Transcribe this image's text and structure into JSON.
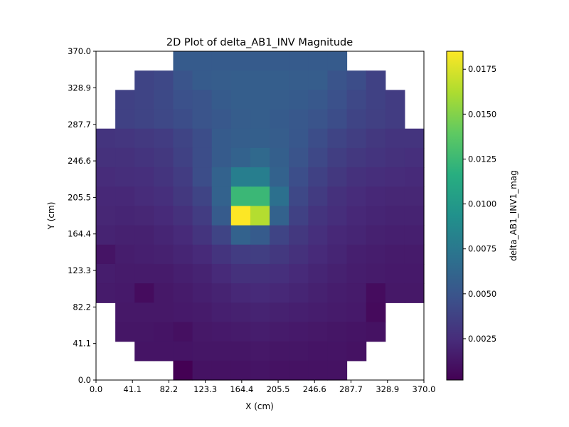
{
  "chart_data": {
    "type": "heatmap",
    "title": "2D Plot of delta_AB1_INV Magnitude",
    "xlabel": "X (cm)",
    "ylabel": "Y (cm)",
    "xlim": [
      0.0,
      370.0
    ],
    "ylim": [
      0.0,
      370.0
    ],
    "x_ticks": [
      "0.0",
      "41.1",
      "82.2",
      "123.3",
      "164.4",
      "205.5",
      "246.6",
      "287.7",
      "328.9",
      "370.0"
    ],
    "y_ticks": [
      "0.0",
      "41.1",
      "82.2",
      "123.3",
      "164.4",
      "205.5",
      "246.6",
      "287.7",
      "328.9",
      "370.0"
    ],
    "grid": false,
    "nx": 17,
    "ny": 17,
    "colorbar": {
      "label": "delta_AB1_INV1_mag",
      "colormap": "viridis",
      "range": [
        0.0002,
        0.0185
      ],
      "ticks": [
        "0.0025",
        "0.0050",
        "0.0075",
        "0.0100",
        "0.0125",
        "0.0150",
        "0.0175"
      ]
    },
    "values_row_order": "top-to-bottom",
    "values": [
      [
        null,
        null,
        null,
        null,
        0.0055,
        0.0055,
        0.0055,
        0.0055,
        0.0055,
        0.0055,
        0.0055,
        0.0055,
        0.0055,
        null,
        null,
        null,
        null
      ],
      [
        null,
        null,
        0.004,
        0.0042,
        0.005,
        0.0055,
        0.0056,
        0.0057,
        0.0057,
        0.0057,
        0.0056,
        0.0056,
        0.005,
        0.0045,
        0.0038,
        null,
        null
      ],
      [
        null,
        0.0038,
        0.004,
        0.0043,
        0.0048,
        0.005,
        0.0055,
        0.0057,
        0.0057,
        0.0056,
        0.0055,
        0.0053,
        0.0048,
        0.0042,
        0.0038,
        0.0035,
        null
      ],
      [
        null,
        0.0038,
        0.004,
        0.0042,
        0.0045,
        0.005,
        0.0053,
        0.0056,
        0.0057,
        0.0055,
        0.0053,
        0.005,
        0.0045,
        0.004,
        0.0037,
        0.0035,
        null
      ],
      [
        0.003,
        0.0031,
        0.0033,
        0.0035,
        0.004,
        0.0045,
        0.0055,
        0.0057,
        0.0058,
        0.0056,
        0.0052,
        0.0045,
        0.004,
        0.0036,
        0.0032,
        0.003,
        0.003
      ],
      [
        0.0028,
        0.0028,
        0.003,
        0.0032,
        0.0038,
        0.0045,
        0.0055,
        0.006,
        0.0065,
        0.0058,
        0.005,
        0.0042,
        0.0036,
        0.0032,
        0.003,
        0.0028,
        0.0027
      ],
      [
        0.0025,
        0.0026,
        0.0027,
        0.003,
        0.0035,
        0.0045,
        0.006,
        0.008,
        0.008,
        0.006,
        0.0046,
        0.0038,
        0.0032,
        0.0028,
        0.0026,
        0.0025,
        0.0024
      ],
      [
        0.0023,
        0.0023,
        0.0025,
        0.0027,
        0.0032,
        0.004,
        0.006,
        0.0125,
        0.0125,
        0.007,
        0.0042,
        0.0034,
        0.0028,
        0.0025,
        0.0023,
        0.0022,
        0.0022
      ],
      [
        0.0022,
        0.0021,
        0.0022,
        0.0024,
        0.0028,
        0.0035,
        0.0055,
        0.0185,
        0.0165,
        0.006,
        0.0038,
        0.003,
        0.0026,
        0.0023,
        0.0021,
        0.002,
        0.002
      ],
      [
        0.002,
        0.0019,
        0.0019,
        0.0021,
        0.0024,
        0.003,
        0.004,
        0.006,
        0.0055,
        0.004,
        0.0032,
        0.0027,
        0.0023,
        0.0021,
        0.0019,
        0.0018,
        0.0018
      ],
      [
        0.0012,
        0.0017,
        0.0018,
        0.0019,
        0.0021,
        0.0024,
        0.003,
        0.0035,
        0.0036,
        0.0032,
        0.0028,
        0.0024,
        0.0021,
        0.0018,
        0.0017,
        0.0016,
        0.0016
      ],
      [
        0.0017,
        0.0016,
        0.0016,
        0.0016,
        0.0018,
        0.002,
        0.0024,
        0.0028,
        0.0028,
        0.0027,
        0.0024,
        0.0021,
        0.0019,
        0.0017,
        0.0016,
        0.0015,
        0.0015
      ],
      [
        0.0016,
        0.0015,
        0.0008,
        0.0014,
        0.0016,
        0.0018,
        0.002,
        0.0023,
        0.0024,
        0.0023,
        0.0021,
        0.0019,
        0.0017,
        0.0016,
        0.0008,
        0.0014,
        0.0014
      ],
      [
        null,
        0.0014,
        0.0014,
        0.0014,
        0.0015,
        0.0016,
        0.0018,
        0.0019,
        0.002,
        0.0019,
        0.0018,
        0.0017,
        0.0016,
        0.0015,
        0.0007,
        null,
        null
      ],
      [
        null,
        0.0013,
        0.0013,
        0.0012,
        0.001,
        0.0014,
        0.0015,
        0.0016,
        0.0017,
        0.0016,
        0.0015,
        0.0014,
        0.0013,
        0.0012,
        0.0011,
        null,
        null
      ],
      [
        null,
        null,
        0.0012,
        0.0012,
        0.0012,
        0.0013,
        0.0013,
        0.0013,
        0.0014,
        0.0013,
        0.0013,
        0.0012,
        0.0012,
        0.0011,
        null,
        null,
        null
      ],
      [
        null,
        null,
        null,
        null,
        0.0002,
        0.0011,
        0.0011,
        0.0011,
        0.0012,
        0.0011,
        0.0011,
        0.0011,
        0.0011,
        null,
        null,
        null,
        null
      ]
    ]
  }
}
